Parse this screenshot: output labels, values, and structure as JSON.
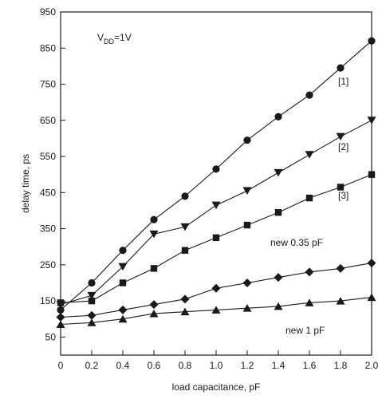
{
  "chart_data": {
    "type": "line",
    "xlabel": "load capacitance, pF",
    "ylabel": "delay time, ps",
    "xlim": [
      0,
      2.0
    ],
    "ylim": [
      0,
      950
    ],
    "xticks": [
      "0",
      "0.2",
      "0.4",
      "0.6",
      "0.8",
      "1.0",
      "1.2",
      "1.4",
      "1.6",
      "1.8",
      "2.0"
    ],
    "xtick_values": [
      0,
      0.2,
      0.4,
      0.6,
      0.8,
      1.0,
      1.2,
      1.4,
      1.6,
      1.8,
      2.0
    ],
    "yticks": [
      "50",
      "150",
      "250",
      "350",
      "450",
      "550",
      "650",
      "750",
      "850",
      "950"
    ],
    "ytick_values": [
      50,
      150,
      250,
      350,
      450,
      550,
      650,
      750,
      850,
      950
    ],
    "grid": false,
    "condition_label": "V",
    "condition_subscript": "DD",
    "condition_value": "=1V",
    "series": [
      {
        "label": "[1]",
        "marker": "circle",
        "x": [
          0,
          0.2,
          0.4,
          0.6,
          0.8,
          1.0,
          1.2,
          1.4,
          1.6,
          1.8,
          2.0
        ],
        "y": [
          125,
          200,
          290,
          375,
          440,
          515,
          595,
          660,
          720,
          795,
          870
        ]
      },
      {
        "label": "[2]",
        "marker": "triangle-down",
        "x": [
          0,
          0.2,
          0.4,
          0.6,
          0.8,
          1.0,
          1.2,
          1.4,
          1.6,
          1.8,
          2.0
        ],
        "y": [
          140,
          165,
          245,
          335,
          355,
          415,
          455,
          505,
          555,
          605,
          650
        ]
      },
      {
        "label": "[3]",
        "marker": "square",
        "x": [
          0,
          0.2,
          0.4,
          0.6,
          0.8,
          1.0,
          1.2,
          1.4,
          1.6,
          1.8,
          2.0
        ],
        "y": [
          145,
          150,
          200,
          240,
          290,
          325,
          360,
          395,
          435,
          465,
          500
        ]
      },
      {
        "label": "new 0.35 pF",
        "marker": "diamond",
        "x": [
          0,
          0.2,
          0.4,
          0.6,
          0.8,
          1.0,
          1.2,
          1.4,
          1.6,
          1.8,
          2.0
        ],
        "y": [
          105,
          110,
          125,
          140,
          155,
          185,
          200,
          215,
          230,
          240,
          255
        ]
      },
      {
        "label": "new 1 pF",
        "marker": "triangle-up",
        "x": [
          0,
          0.2,
          0.4,
          0.6,
          0.8,
          1.0,
          1.2,
          1.4,
          1.6,
          1.8,
          2.0
        ],
        "y": [
          85,
          90,
          100,
          115,
          120,
          125,
          130,
          135,
          145,
          150,
          160
        ]
      }
    ]
  }
}
